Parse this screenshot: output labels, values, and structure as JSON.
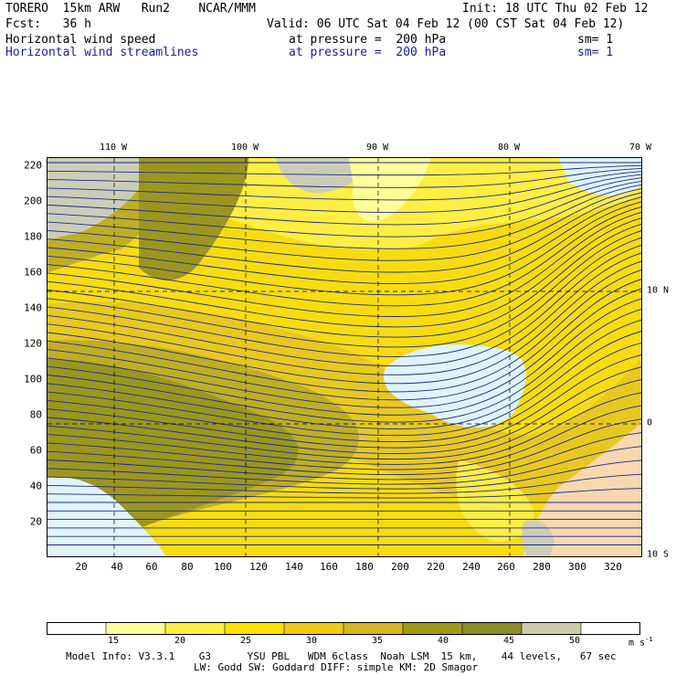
{
  "header": {
    "model": "TORERO  15km ARW   Run2    NCAR/MMM",
    "init": "Init: 18 UTC Thu 02 Feb 12",
    "fcst": "Fcst:   36 h",
    "valid": "Valid: 06 UTC Sat 04 Feb 12 (00 CST Sat 04 Feb 12)",
    "field1_name": "Horizontal wind speed",
    "field1_level": "at pressure =  200 hPa",
    "field1_sm": "sm= 1",
    "field2_name": "Horizontal wind streamlines",
    "field2_level": "at pressure =  200 hPa",
    "field2_sm": "sm= 1"
  },
  "axes": {
    "top_lon_labels": [
      "110 W",
      "100 W",
      "90 W",
      "80 W",
      "70 W"
    ],
    "right_lat_labels": [
      "10 N",
      "0",
      "10 S"
    ],
    "left_y_ticks": [
      "220",
      "200",
      "180",
      "160",
      "140",
      "120",
      "100",
      "80",
      "60",
      "40",
      "20"
    ],
    "bottom_x_ticks": [
      "20",
      "40",
      "60",
      "80",
      "100",
      "120",
      "140",
      "160",
      "180",
      "200",
      "220",
      "240",
      "260",
      "280",
      "300",
      "320"
    ]
  },
  "colorbar": {
    "labels": [
      "15",
      "20",
      "25",
      "30",
      "35",
      "40",
      "45",
      "50"
    ],
    "units": "m s",
    "units_exp": "-1",
    "colors": [
      "#ffffff",
      "#ffff99",
      "#ffee44",
      "#ffe000",
      "#f0c818",
      "#d6b520",
      "#a09a18",
      "#8c8c28",
      "#ccccaa",
      "#ffffff"
    ]
  },
  "footer": {
    "line1": "Model Info: V3.3.1    G3      YSU PBL   WDM 6class  Noah LSM  15 km,    44 levels,   67 sec",
    "line2": "LW: Godd SW: Goddard DIFF: simple KM: 2D Smagor"
  },
  "map_colors": {
    "calm": "#e0f4fc",
    "c15": "#ffff99",
    "c20": "#ffee44",
    "c25": "#f8dc10",
    "c30": "#e8c820",
    "c35": "#bfae25",
    "c40": "#9c9620",
    "c45": "#8c8a30",
    "c50": "#cccdb8",
    "land": "#f8d8b0",
    "stream": "#1a2a8c",
    "coast": "#1a2a8c"
  }
}
